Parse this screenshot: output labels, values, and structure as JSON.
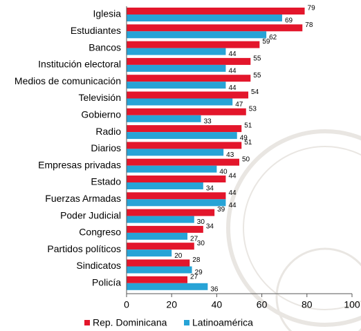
{
  "chart_data": {
    "type": "bar",
    "orientation": "horizontal",
    "categories": [
      "Iglesia",
      "Estudiantes",
      "Bancos",
      "Institución electoral",
      "Medios de comunicación",
      "Televisión",
      "Gobierno",
      "Radio",
      "Diarios",
      "Empresas privadas",
      "Estado",
      "Fuerzas Armadas",
      "Poder Judicial",
      "Congreso",
      "Partidos políticos",
      "Sindicatos",
      "Policía"
    ],
    "series": [
      {
        "name": "Rep. Dominicana",
        "color": "#e3162b",
        "values": [
          79,
          78,
          59,
          55,
          55,
          54,
          53,
          51,
          51,
          50,
          44,
          44,
          39,
          34,
          30,
          28,
          27
        ]
      },
      {
        "name": "Latinoamérica",
        "color": "#27a3d6",
        "values": [
          69,
          62,
          44,
          44,
          44,
          47,
          33,
          49,
          43,
          40,
          34,
          44,
          30,
          27,
          20,
          29,
          36
        ]
      }
    ],
    "xlim": [
      0,
      100
    ],
    "xticks": [
      0,
      20,
      40,
      60,
      80,
      100
    ],
    "grid": false,
    "legend": "bottom"
  }
}
